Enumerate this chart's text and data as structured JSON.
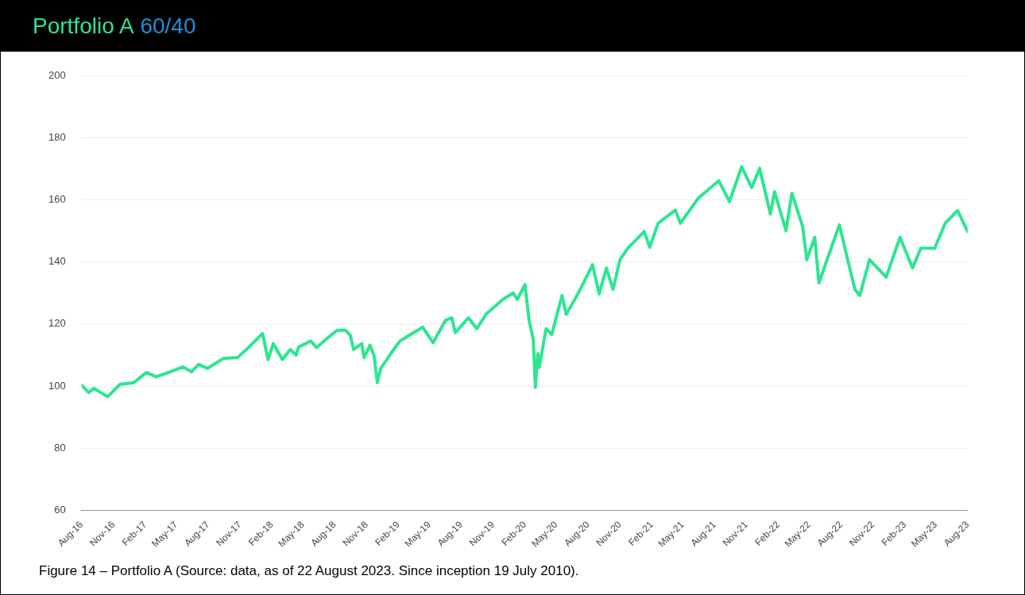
{
  "chart_data": {
    "type": "line",
    "title": "Portfolio A 60/40",
    "annotations": [
      "Figure 14 – Portfolio A (Source: data, as of 22 August 2023. Since inception 19 July 2010)."
    ],
    "x": [
      "2016-08-01",
      "2016-08-22",
      "2016-09-05",
      "2016-10-15",
      "2016-11-20",
      "2016-12-29",
      "2017-02-04",
      "2017-03-04",
      "2017-04-09",
      "2017-05-20",
      "2017-06-14",
      "2017-07-05",
      "2017-07-30",
      "2017-09-14",
      "2017-10-25",
      "2017-11-25",
      "2018-01-05",
      "2018-01-21",
      "2018-02-05",
      "2018-03-03",
      "2018-03-26",
      "2018-04-12",
      "2018-04-19",
      "2018-05-24",
      "2018-06-10",
      "2018-07-15",
      "2018-08-08",
      "2018-09-01",
      "2018-09-15",
      "2018-09-25",
      "2018-10-18",
      "2018-10-25",
      "2018-11-11",
      "2018-11-23",
      "2018-12-02",
      "2018-12-12",
      "2019-01-10",
      "2019-02-05",
      "2019-04-12",
      "2019-05-12",
      "2019-06-17",
      "2019-07-05",
      "2019-07-15",
      "2019-08-22",
      "2019-09-15",
      "2019-10-13",
      "2019-11-29",
      "2019-12-29",
      "2020-01-10",
      "2020-02-01",
      "2020-02-13",
      "2020-02-25",
      "2020-03-02",
      "2020-03-09",
      "2020-03-13",
      "2020-04-02",
      "2020-04-18",
      "2020-05-18",
      "2020-05-30",
      "2020-06-28",
      "2020-07-21",
      "2020-08-14",
      "2020-09-02",
      "2020-09-23",
      "2020-10-12",
      "2020-11-01",
      "2020-11-24",
      "2021-01-10",
      "2021-01-26",
      "2021-02-19",
      "2021-04-10",
      "2021-04-24",
      "2021-06-15",
      "2021-08-13",
      "2021-09-13",
      "2021-10-18",
      "2021-11-16",
      "2021-12-09",
      "2022-01-09",
      "2022-01-21",
      "2022-02-23",
      "2022-03-12",
      "2022-04-12",
      "2022-04-24",
      "2022-05-17",
      "2022-05-29",
      "2022-06-19",
      "2022-07-27",
      "2022-08-20",
      "2022-09-10",
      "2022-09-24",
      "2022-10-22",
      "2022-12-09",
      "2023-01-18",
      "2023-02-23",
      "2023-03-19",
      "2023-04-28",
      "2023-05-28",
      "2023-07-03",
      "2023-08-01"
    ],
    "series": [
      {
        "color": "#2ee592",
        "values": [
          100.3,
          97.9,
          99.3,
          96.6,
          100.6,
          101.1,
          104.4,
          103.0,
          104.4,
          106.2,
          104.6,
          107.0,
          105.7,
          108.9,
          109.2,
          112.4,
          116.9,
          108.6,
          113.7,
          108.6,
          111.8,
          110.0,
          112.6,
          114.5,
          112.4,
          115.8,
          118.0,
          118.0,
          116.4,
          111.8,
          113.7,
          109.2,
          113.2,
          109.7,
          101.1,
          105.7,
          110.5,
          114.5,
          119.0,
          114.0,
          121.2,
          122.0,
          117.2,
          122.0,
          118.5,
          123.3,
          127.9,
          130.0,
          127.9,
          132.7,
          121.2,
          115.0,
          99.6,
          110.5,
          106.0,
          118.5,
          116.6,
          129.2,
          123.1,
          128.7,
          133.7,
          139.1,
          129.7,
          138.0,
          131.1,
          140.7,
          144.4,
          149.8,
          144.7,
          152.4,
          156.7,
          152.4,
          160.5,
          166.1,
          159.4,
          170.6,
          163.9,
          170.1,
          155.4,
          162.6,
          150.0,
          162.1,
          151.4,
          140.7,
          147.9,
          133.2,
          139.9,
          151.9,
          140.7,
          131.1,
          129.2,
          140.7,
          135.1,
          147.9,
          138.0,
          144.4,
          144.4,
          152.4,
          156.5,
          149.8
        ]
      }
    ],
    "xlim": [
      "2016-08-01",
      "2023-08-01"
    ],
    "xticks": [
      {
        "value": "2016-08-01",
        "label": "Aug-16"
      },
      {
        "value": "2016-11-01",
        "label": "Nov-16"
      },
      {
        "value": "2017-02-01",
        "label": "Feb-17"
      },
      {
        "value": "2017-05-01",
        "label": "May-17"
      },
      {
        "value": "2017-08-01",
        "label": "Aug-17"
      },
      {
        "value": "2017-11-01",
        "label": "Nov-17"
      },
      {
        "value": "2018-02-01",
        "label": "Feb-18"
      },
      {
        "value": "2018-05-01",
        "label": "May-18"
      },
      {
        "value": "2018-08-01",
        "label": "Aug-18"
      },
      {
        "value": "2018-11-01",
        "label": "Nov-18"
      },
      {
        "value": "2019-02-01",
        "label": "Feb-19"
      },
      {
        "value": "2019-05-01",
        "label": "May-19"
      },
      {
        "value": "2019-08-01",
        "label": "Aug-19"
      },
      {
        "value": "2019-11-01",
        "label": "Nov-19"
      },
      {
        "value": "2020-02-01",
        "label": "Feb-20"
      },
      {
        "value": "2020-05-01",
        "label": "May-20"
      },
      {
        "value": "2020-08-01",
        "label": "Aug-20"
      },
      {
        "value": "2020-11-01",
        "label": "Nov-20"
      },
      {
        "value": "2021-02-01",
        "label": "Feb-21"
      },
      {
        "value": "2021-05-01",
        "label": "May-21"
      },
      {
        "value": "2021-08-01",
        "label": "Aug-21"
      },
      {
        "value": "2021-11-01",
        "label": "Nov-21"
      },
      {
        "value": "2022-02-01",
        "label": "Feb-22"
      },
      {
        "value": "2022-05-01",
        "label": "May-22"
      },
      {
        "value": "2022-08-01",
        "label": "Aug-22"
      },
      {
        "value": "2022-11-01",
        "label": "Nov-22"
      },
      {
        "value": "2023-02-01",
        "label": "Feb-23"
      },
      {
        "value": "2023-05-01",
        "label": "May-23"
      },
      {
        "value": "2023-08-01",
        "label": "Aug-23"
      }
    ],
    "ylim": [
      60,
      200
    ],
    "yticks": [
      60,
      80,
      100,
      120,
      140,
      160,
      180,
      200
    ],
    "grid": "y",
    "marker": "none",
    "line_style": "solid",
    "legend": false
  }
}
